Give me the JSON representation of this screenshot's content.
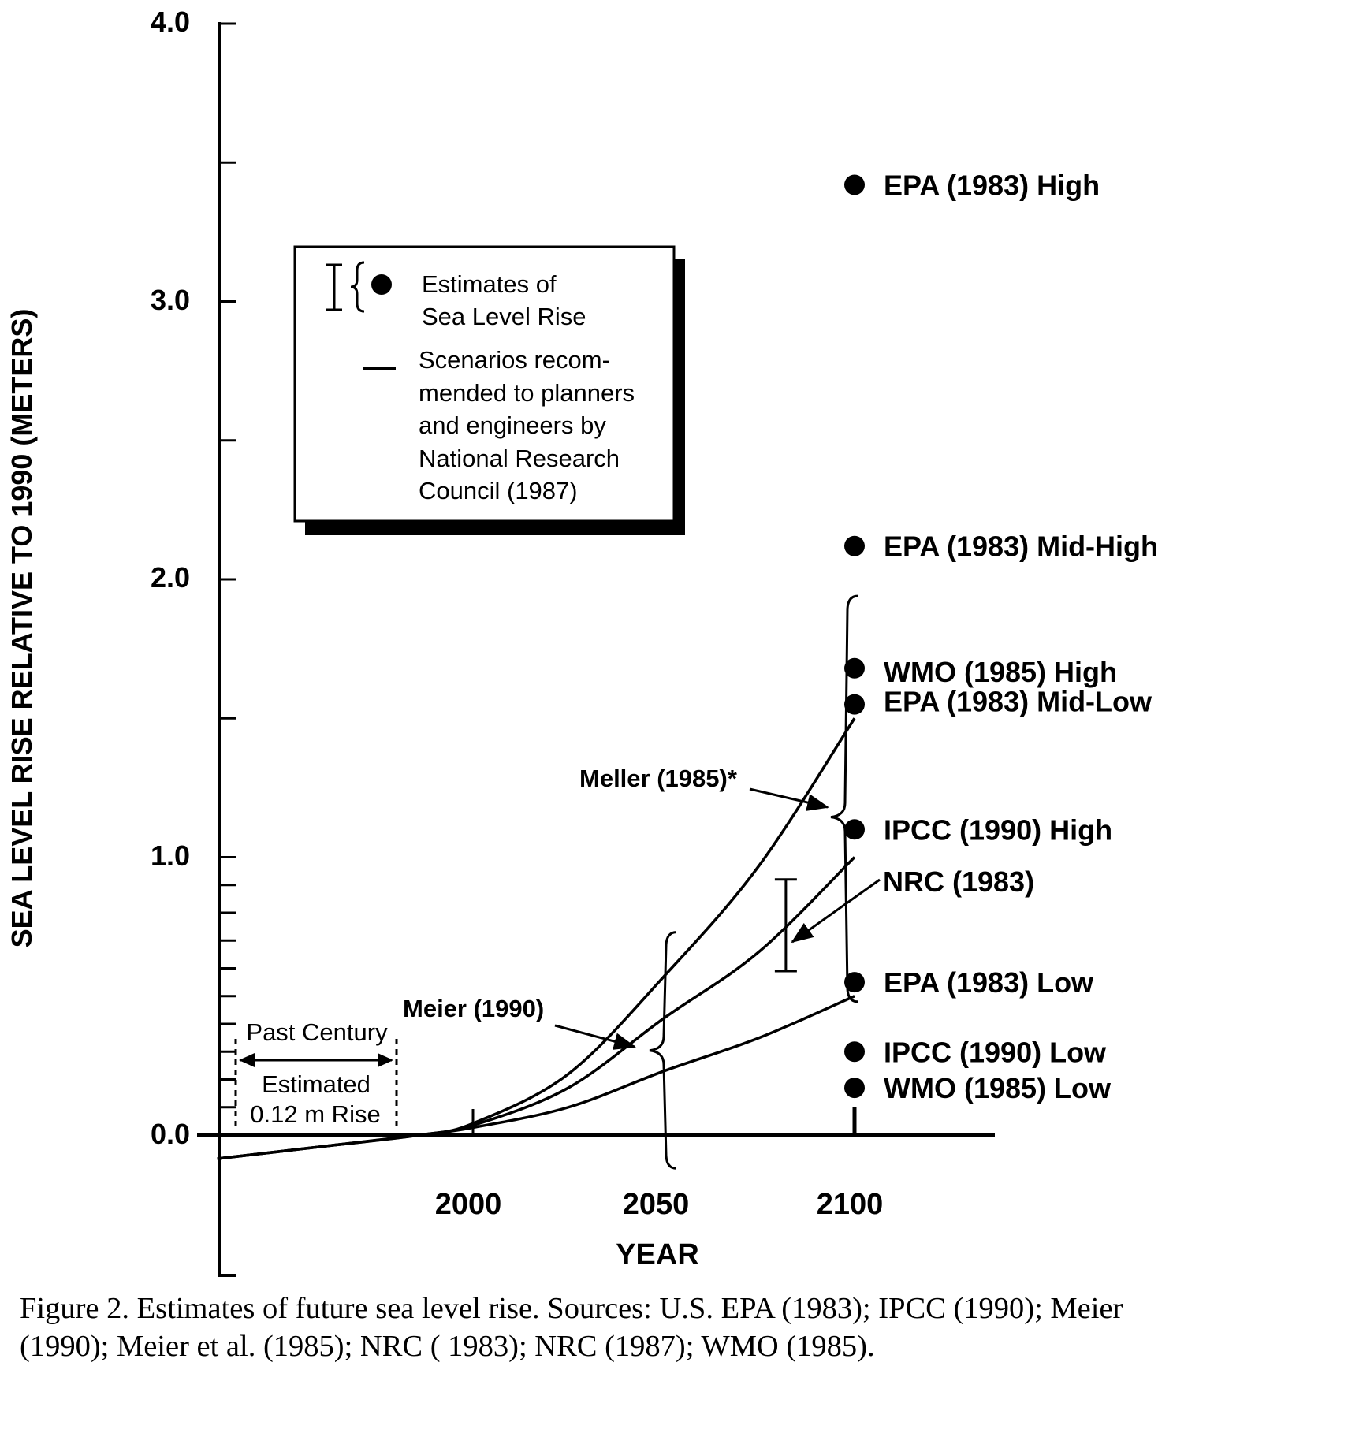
{
  "chart_data": {
    "type": "line",
    "ylabel": "SEA LEVEL RISE RELATIVE TO 1990 (METERS)",
    "xlabel": "YEAR",
    "ylim": [
      -0.5,
      4.0
    ],
    "y_ticks": [
      "4.0",
      "3.0",
      "2.0",
      "1.0",
      "0.0"
    ],
    "x_ticks": [
      "2000",
      "2050",
      "2100"
    ],
    "grid": false,
    "legend": {
      "placement": "upper-left",
      "estimates_label": [
        "Estimates of",
        "Sea Level Rise"
      ],
      "scenarios_label": [
        "Scenarios recom-",
        "mended to planners",
        "and engineers by",
        "National Research",
        "Council (1987)"
      ]
    },
    "scenario_curves": {
      "x": [
        1933,
        1960,
        1986,
        2000,
        2025,
        2050,
        2075,
        2100
      ],
      "series": [
        {
          "values": [
            -0.085,
            -0.042,
            0.0,
            0.042,
            0.22,
            0.57,
            0.97,
            1.5
          ]
        },
        {
          "values": [
            -0.085,
            -0.042,
            0.0,
            0.035,
            0.17,
            0.42,
            0.66,
            1.0
          ]
        },
        {
          "values": [
            -0.085,
            -0.042,
            0.0,
            0.027,
            0.1,
            0.23,
            0.35,
            0.5
          ]
        }
      ]
    },
    "point_estimates_2100": [
      {
        "label": "EPA (1983) High",
        "value": 3.42
      },
      {
        "label": "EPA (1983) Mid-High",
        "value": 2.12
      },
      {
        "label": "WMO (1985) High",
        "value": 1.68
      },
      {
        "label": "EPA (1983) Mid-Low",
        "value": 1.55
      },
      {
        "label": "IPCC (1990) High",
        "value": 1.1
      },
      {
        "label": "EPA (1983) Low",
        "value": 0.55
      },
      {
        "label": "IPCC (1990) Low",
        "value": 0.3
      },
      {
        "label": "WMO (1985) Low",
        "value": 0.17
      }
    ],
    "ranges": [
      {
        "label": "NRC (1983)",
        "year": 2082,
        "low": 0.59,
        "high": 0.92,
        "style": "error-bar"
      },
      {
        "label": "Meier (1990)",
        "year": 2050,
        "low": -0.12,
        "high": 0.73,
        "style": "brace"
      },
      {
        "label": "Meller (1985)*",
        "year": 2100,
        "low": 0.48,
        "high": 1.94,
        "style": "brace"
      }
    ],
    "past_century": {
      "title": "Past Century",
      "line1": "Estimated",
      "line2": "0.12 m Rise"
    }
  },
  "caption": {
    "line1": "Figure 2. Estimates of future sea level rise.  Sources: U.S. EPA (1983); IPCC (1990); Meier",
    "line2": "(1990); Meier et al. (1985); NRC ( 1983); NRC (1987); WMO (1985)."
  }
}
